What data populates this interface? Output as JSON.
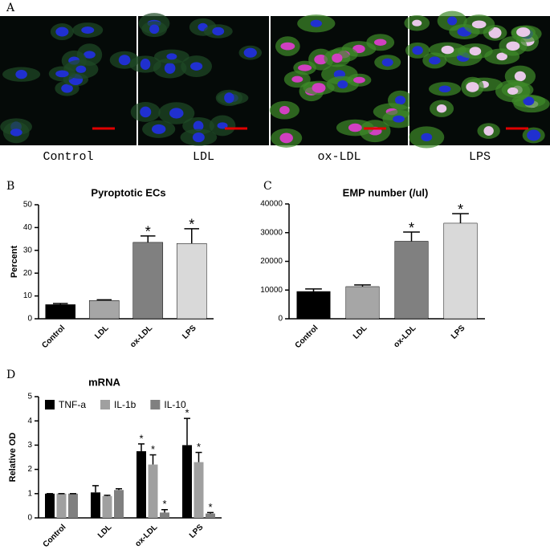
{
  "panels": {
    "a": {
      "letter": "A",
      "captions": [
        "Control",
        "LDL",
        "ox-LDL",
        "LPS"
      ]
    },
    "b": {
      "letter": "B"
    },
    "c": {
      "letter": "C"
    },
    "d": {
      "letter": "D"
    }
  },
  "chart_data": [
    {
      "type": "bar",
      "title": "Pyroptotic ECs",
      "y_label": "Percent",
      "categories": [
        "Control",
        "LDL",
        "ox-LDL",
        "LPS"
      ],
      "values": [
        6.2,
        8,
        33.5,
        33
      ],
      "errors": [
        0.5,
        0.3,
        2.8,
        6.5
      ],
      "colors": [
        "#000000",
        "#a6a6a6",
        "#808080",
        "#d9d9d9"
      ],
      "ylim": [
        0,
        50
      ],
      "yticks": [
        0,
        10,
        20,
        30,
        40,
        50
      ],
      "annotations": [
        {
          "category": "ox-LDL",
          "text": "*"
        },
        {
          "category": "LPS",
          "text": "*"
        }
      ]
    },
    {
      "type": "bar",
      "title": "EMP number (/ul)",
      "categories": [
        "Control",
        "LDL",
        "ox-LDL",
        "LPS"
      ],
      "values": [
        9500,
        11200,
        27000,
        33300
      ],
      "errors": [
        900,
        600,
        3200,
        3300
      ],
      "colors": [
        "#000000",
        "#a6a6a6",
        "#808080",
        "#d9d9d9"
      ],
      "ylim": [
        0,
        40000
      ],
      "yticks": [
        0,
        10000,
        20000,
        30000,
        40000
      ],
      "annotations": [
        {
          "category": "ox-LDL",
          "text": "*"
        },
        {
          "category": "LPS",
          "text": "*"
        }
      ]
    },
    {
      "type": "grouped-bar",
      "title": "mRNA",
      "y_label": "Relative OD",
      "categories": [
        "Control",
        "LDL",
        "ox-LDL",
        "LPS"
      ],
      "series": [
        {
          "name": "TNF-a",
          "color": "#000000",
          "values": [
            1,
            1.05,
            2.75,
            3.0
          ],
          "errors": [
            0,
            0.28,
            0.3,
            1.1
          ]
        },
        {
          "name": "IL-1b",
          "color": "#a0a0a0",
          "values": [
            1,
            0.9,
            2.2,
            2.3
          ],
          "errors": [
            0,
            0.03,
            0.4,
            0.4
          ]
        },
        {
          "name": "IL-10",
          "color": "#808080",
          "values": [
            1,
            1.15,
            0.22,
            0.18
          ],
          "errors": [
            0,
            0.05,
            0.12,
            0.04
          ]
        }
      ],
      "ylim": [
        0,
        5
      ],
      "yticks": [
        0,
        1,
        2,
        3,
        4,
        5
      ],
      "annotations": [
        {
          "series": "TNF-a",
          "category": "ox-LDL",
          "text": "*"
        },
        {
          "series": "IL-1b",
          "category": "ox-LDL",
          "text": "*"
        },
        {
          "series": "IL-10",
          "category": "ox-LDL",
          "text": "*"
        },
        {
          "series": "TNF-a",
          "category": "LPS",
          "text": "*"
        },
        {
          "series": "IL-1b",
          "category": "LPS",
          "text": "*"
        },
        {
          "series": "IL-10",
          "category": "LPS",
          "text": "*"
        }
      ]
    }
  ]
}
